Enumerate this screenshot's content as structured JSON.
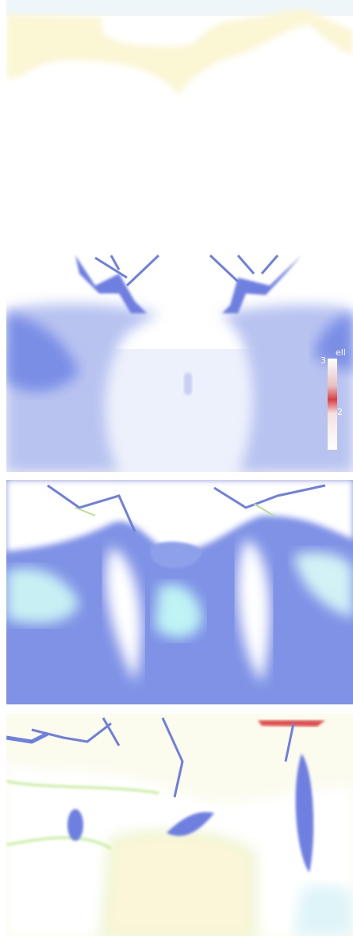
{
  "colorbar": {
    "title": "ell",
    "labels": [
      "3",
      "2"
    ]
  }
}
